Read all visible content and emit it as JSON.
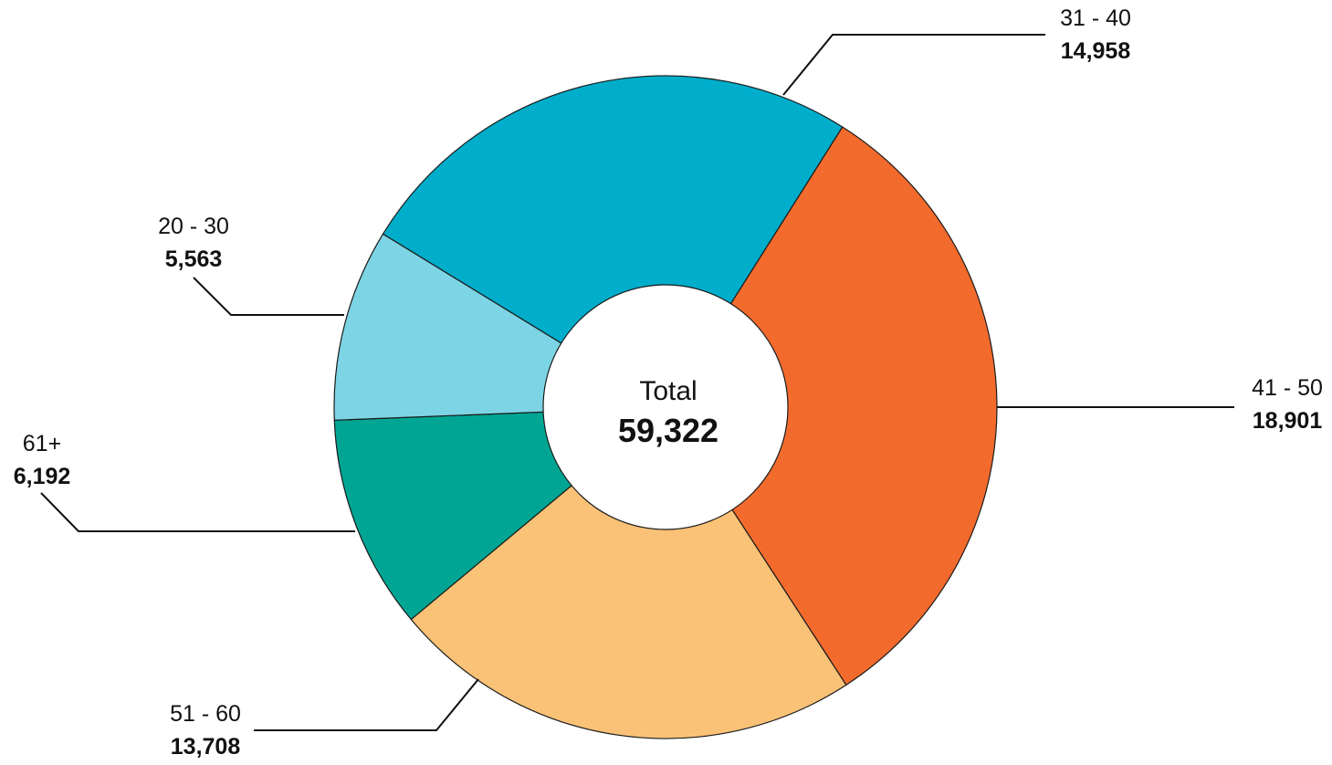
{
  "chart_data": {
    "type": "donut",
    "center": {
      "label": "Total",
      "value": "59,322"
    },
    "categories": [
      "31 - 40",
      "41 - 50",
      "51 - 60",
      "61+",
      "20 - 30"
    ],
    "values": [
      14958,
      18901,
      13708,
      6192,
      5563
    ],
    "value_labels": [
      "14,958",
      "18,901",
      "13,708",
      "6,192",
      "5,563"
    ],
    "colors": [
      "#00adca",
      "#f26b2d",
      "#fac277",
      "#00a693",
      "#7dd4e4"
    ],
    "legend": "none",
    "data_labels": "outside-with-leader-lines"
  }
}
